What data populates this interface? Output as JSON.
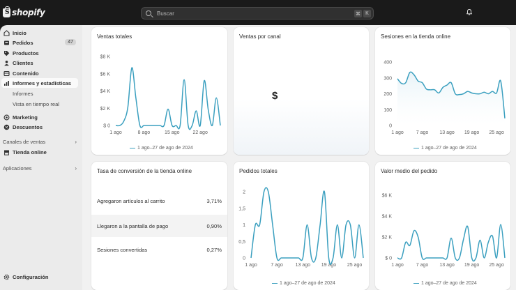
{
  "topbar": {
    "brand": "shopify",
    "brand_glyph": "S",
    "search_placeholder": "Buscar",
    "shortcut_keys": [
      "⌘",
      "K"
    ],
    "notification_icon": "bell-icon"
  },
  "sidebar": {
    "items": [
      {
        "label": "Inicio",
        "icon": "home-icon"
      },
      {
        "label": "Pedidos",
        "icon": "inbox-icon",
        "badge": "47"
      },
      {
        "label": "Productos",
        "icon": "tag-icon"
      },
      {
        "label": "Clientes",
        "icon": "person-icon"
      },
      {
        "label": "Contenido",
        "icon": "content-icon"
      },
      {
        "label": "Informes y estadísticas",
        "icon": "chart-icon",
        "active": true
      }
    ],
    "sub_items": [
      "Informes",
      "Vista en tiempo real"
    ],
    "items2": [
      {
        "label": "Marketing",
        "icon": "target-icon"
      },
      {
        "label": "Descuentos",
        "icon": "discount-icon"
      }
    ],
    "sales_channels_label": "Canales de ventas",
    "online_store_label": "Tienda online",
    "apps_label": "Aplicaciones",
    "settings_label": "Configuración"
  },
  "cards": {
    "total_sales": {
      "title": "Ventas totales",
      "legend": "1 ago–27 de ago de 2024"
    },
    "sales_by_channel": {
      "title": "Ventas por canal",
      "symbol": "$"
    },
    "online_sessions": {
      "title": "Sesiones en la tienda online",
      "legend": "1 ago–27 de ago de 2024"
    },
    "conversion": {
      "title": "Tasa de conversión de la tienda online",
      "rows": [
        {
          "label": "Agregaron artículos al carrito",
          "value": "3,71%"
        },
        {
          "label": "Llegaron a la pantalla de pago",
          "value": "0,90%"
        },
        {
          "label": "Sesiones convertidas",
          "value": "0,27%"
        }
      ]
    },
    "total_orders": {
      "title": "Pedidos totales",
      "legend": "1 ago–27 de ago de 2024"
    },
    "avg_order": {
      "title": "Valor medio del pedido",
      "legend": "1 ago–27 de ago de 2024"
    }
  },
  "colors": {
    "line": "#3a9fbf",
    "fill": "#e8f3f8"
  },
  "chart_data": [
    {
      "type": "line",
      "title": "Ventas totales",
      "x_ticks": [
        "1 ago",
        "8 ago",
        "15 ago",
        "22 ago"
      ],
      "y_ticks": [
        "$ 0",
        "$2 K",
        "$4 K",
        "$6 K",
        "$8 K"
      ],
      "ylim": [
        0,
        8000
      ],
      "days": [
        1,
        2,
        3,
        4,
        5,
        6,
        7,
        8,
        9,
        10,
        11,
        12,
        13,
        14,
        15,
        16,
        17,
        18,
        19,
        20,
        21,
        22,
        23,
        24,
        25,
        26,
        27
      ],
      "values": [
        0,
        0,
        0,
        0,
        1800,
        6500,
        1800,
        0,
        0,
        0,
        0,
        0,
        0,
        0,
        0,
        0,
        0,
        0,
        0,
        0,
        0,
        0,
        0,
        0,
        0,
        0,
        0
      ],
      "series": [
        {
          "name": "1 ago–27 de ago de 2024",
          "values": [
            0,
            0,
            500,
            2100,
            6700,
            3200,
            0,
            0,
            0,
            0,
            0,
            0,
            0,
            1900,
            0,
            0,
            0,
            5300,
            0,
            0,
            1700,
            0,
            5200,
            1800,
            0,
            3200,
            0
          ]
        }
      ]
    },
    {
      "type": "area",
      "title": "Sesiones en la tienda online",
      "x_ticks": [
        "1 ago",
        "7 ago",
        "13 ago",
        "19 ago",
        "25 ago"
      ],
      "y_ticks": [
        "0",
        "100",
        "200",
        "300",
        "400"
      ],
      "ylim": [
        0,
        400
      ],
      "series": [
        {
          "name": "1 ago–27 de ago de 2024",
          "values": [
            295,
            265,
            270,
            335,
            320,
            280,
            270,
            230,
            225,
            225,
            205,
            240,
            255,
            270,
            200,
            195,
            200,
            215,
            205,
            200,
            200,
            210,
            200,
            215,
            205,
            280,
            45
          ]
        }
      ]
    },
    {
      "type": "line",
      "title": "Pedidos totales",
      "x_ticks": [
        "1 ago",
        "7 ago",
        "13 ago",
        "19 ago",
        "25 ago"
      ],
      "y_ticks": [
        "0",
        "0,5",
        "1",
        "1,5",
        "2"
      ],
      "ylim": [
        0,
        2
      ],
      "series": [
        {
          "name": "1 ago–27 de ago de 2024",
          "values": [
            0,
            1,
            1,
            2,
            2,
            1,
            0,
            0,
            0,
            0,
            0,
            0,
            0,
            1,
            0,
            0,
            1,
            2,
            0,
            0,
            1,
            0,
            1,
            1,
            0,
            1,
            0
          ]
        }
      ]
    },
    {
      "type": "line",
      "title": "Valor medio del pedido",
      "x_ticks": [
        "1 ago",
        "7 ago",
        "13 ago",
        "19 ago",
        "25 ago"
      ],
      "y_ticks": [
        "$ 0",
        "$2 K",
        "$4 K",
        "$6 K"
      ],
      "ylim": [
        0,
        6000
      ],
      "series": [
        {
          "name": "1 ago–27 de ago de 2024",
          "values": [
            0,
            0,
            1500,
            1200,
            2600,
            2000,
            0,
            0,
            0,
            0,
            0,
            0,
            0,
            1900,
            0,
            0,
            1800,
            3000,
            0,
            0,
            1700,
            0,
            1500,
            2100,
            0,
            3200,
            0
          ]
        }
      ]
    }
  ]
}
